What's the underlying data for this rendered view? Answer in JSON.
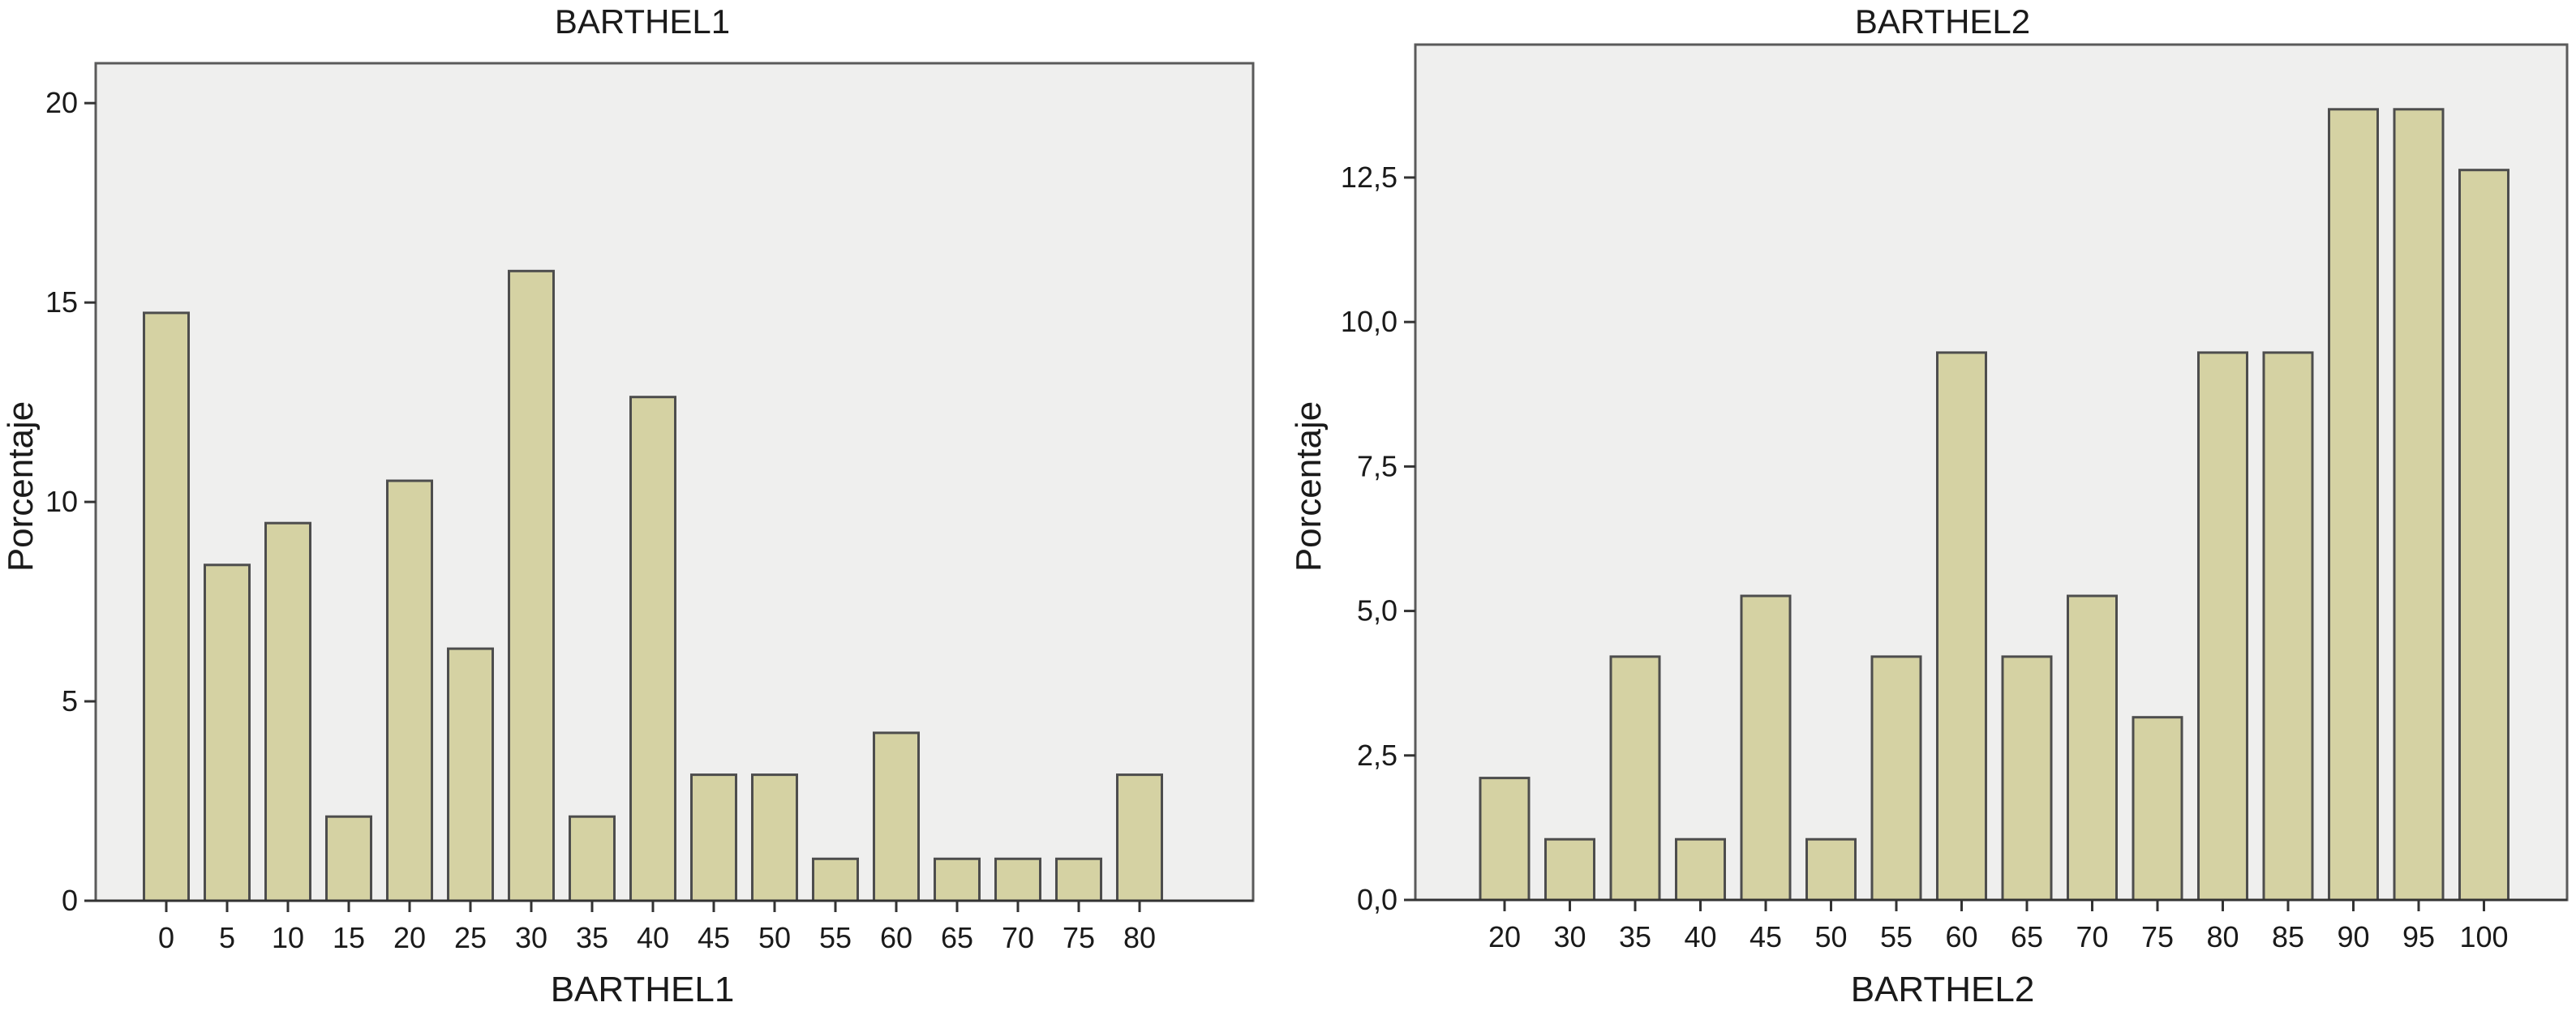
{
  "colors": {
    "bar_fill": "#d5d2a3",
    "bar_stroke": "#4d4d4d",
    "plot_bg": "#efefee"
  },
  "chart_data": [
    {
      "type": "bar",
      "title": "BARTHEL1",
      "xlabel": "BARTHEL1",
      "ylabel": "Porcentaje",
      "categories": [
        "0",
        "5",
        "10",
        "15",
        "20",
        "25",
        "30",
        "35",
        "40",
        "45",
        "50",
        "55",
        "60",
        "65",
        "70",
        "75",
        "80"
      ],
      "values": [
        14.74,
        8.42,
        9.47,
        2.11,
        10.53,
        6.32,
        15.79,
        2.11,
        12.63,
        3.16,
        3.16,
        1.05,
        4.21,
        1.05,
        1.05,
        1.05,
        3.16
      ],
      "ylim": [
        0,
        21
      ],
      "yticks": [
        0,
        5,
        10,
        15,
        20
      ],
      "ytick_labels": [
        "0",
        "5",
        "10",
        "15",
        "20"
      ],
      "grid": false,
      "legend": "none"
    },
    {
      "type": "bar",
      "title": "BARTHEL2",
      "xlabel": "BARTHEL2",
      "ylabel": "Porcentaje",
      "categories": [
        "20",
        "30",
        "35",
        "40",
        "45",
        "50",
        "55",
        "60",
        "65",
        "70",
        "75",
        "80",
        "85",
        "90",
        "95",
        "100"
      ],
      "values": [
        2.11,
        1.05,
        4.21,
        1.05,
        5.26,
        1.05,
        4.21,
        9.47,
        4.21,
        5.26,
        3.16,
        9.47,
        9.47,
        13.68,
        13.68,
        12.63
      ],
      "ylim": [
        0,
        14.8
      ],
      "yticks": [
        0,
        2.5,
        5,
        7.5,
        10,
        12.5
      ],
      "ytick_labels": [
        "0,0",
        "2,5",
        "5,0",
        "7,5",
        "10,0",
        "12,5"
      ],
      "grid": false,
      "legend": "none"
    }
  ]
}
